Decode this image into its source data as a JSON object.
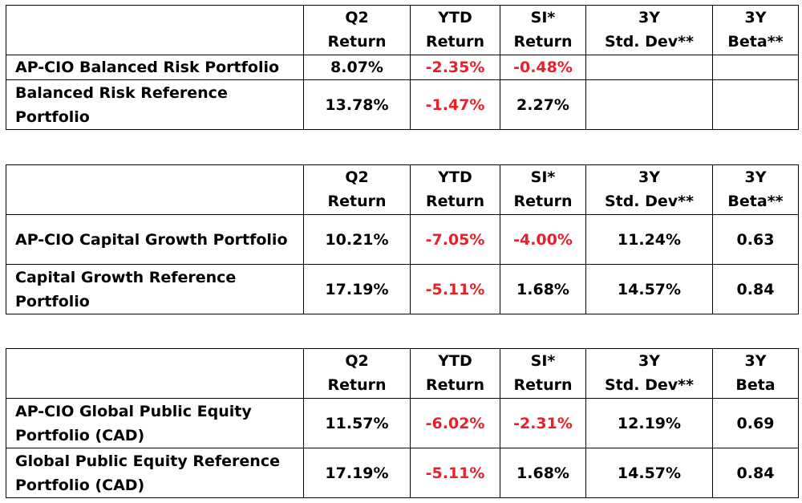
{
  "tables": [
    {
      "headers": [
        {
          "line1": "Q2",
          "line2": "Return"
        },
        {
          "line1": "YTD",
          "line2": "Return"
        },
        {
          "line1": "SI*",
          "line2": "Return"
        },
        {
          "line1": "3Y",
          "line2": "Std. Dev**"
        },
        {
          "line1": "3Y",
          "line2": "Beta**"
        }
      ],
      "rows": [
        {
          "name": "AP-CIO Balanced Risk Portfolio",
          "q2": "8.07%",
          "ytd": "-2.35%",
          "si": "-0.48%",
          "stddev": "",
          "beta": ""
        },
        {
          "name": "Balanced Risk Reference Portfolio",
          "q2": "13.78%",
          "ytd": "-1.47%",
          "si": "2.27%",
          "stddev": "",
          "beta": ""
        }
      ]
    },
    {
      "headers": [
        {
          "line1": "Q2",
          "line2": "Return"
        },
        {
          "line1": "YTD",
          "line2": "Return"
        },
        {
          "line1": "SI*",
          "line2": "Return"
        },
        {
          "line1": "3Y",
          "line2": "Std. Dev**"
        },
        {
          "line1": "3Y",
          "line2": "Beta**"
        }
      ],
      "rows": [
        {
          "name": "AP-CIO Capital Growth Portfolio",
          "q2": "10.21%",
          "ytd": "-7.05%",
          "si": "-4.00%",
          "stddev": "11.24%",
          "beta": "0.63"
        },
        {
          "name": "Capital Growth Reference Portfolio",
          "q2": "17.19%",
          "ytd": "-5.11%",
          "si": "1.68%",
          "stddev": "14.57%",
          "beta": "0.84"
        }
      ]
    },
    {
      "headers": [
        {
          "line1": "Q2",
          "line2": "Return"
        },
        {
          "line1": "YTD",
          "line2": "Return"
        },
        {
          "line1": "SI*",
          "line2": "Return"
        },
        {
          "line1": "3Y",
          "line2": "Std. Dev**"
        },
        {
          "line1": "3Y",
          "line2": "Beta"
        }
      ],
      "rows": [
        {
          "name": "AP-CIO Global Public Equity Portfolio (CAD)",
          "q2": "11.57%",
          "ytd": "-6.02%",
          "si": "-2.31%",
          "stddev": "12.19%",
          "beta": "0.69"
        },
        {
          "name": "Global Public Equity Reference Portfolio (CAD)",
          "q2": "17.19%",
          "ytd": "-5.11%",
          "si": "1.68%",
          "stddev": "14.57%",
          "beta": "0.84"
        }
      ]
    }
  ],
  "colors": {
    "negative": "#e8202a",
    "text": "#000000",
    "border": "#000000"
  }
}
